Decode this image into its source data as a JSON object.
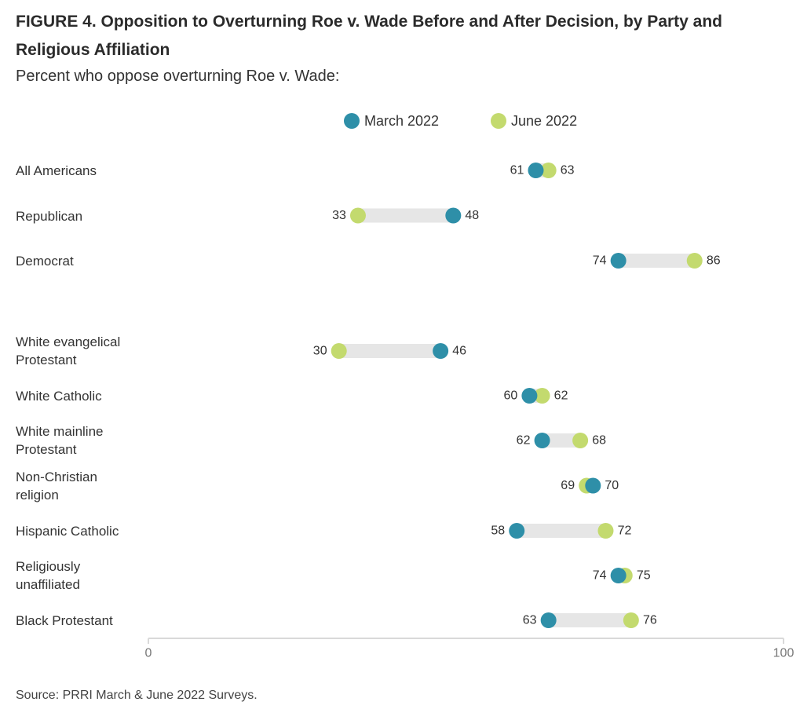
{
  "chart_data": {
    "type": "dumbbell",
    "title": "FIGURE 4.  Opposition to Overturning Roe v. Wade Before and After Decision, by Party and Religious Affiliation",
    "subtitle": "Percent who oppose overturning Roe v. Wade:",
    "source": "Source: PRRI March & June 2022 Surveys.",
    "xlim": [
      0,
      100
    ],
    "x_ticks": [
      "0",
      "100"
    ],
    "legend_position": "top-center",
    "series": [
      {
        "name": "March 2022",
        "color": "#2e8fa8"
      },
      {
        "name": "June 2022",
        "color": "#c3da6e"
      }
    ],
    "categories": [
      {
        "label": "All Americans",
        "march": 61,
        "june": 63
      },
      {
        "label": "Republican",
        "march": 48,
        "june": 33
      },
      {
        "label": "Democrat",
        "march": 74,
        "june": 86
      },
      {
        "label": "White evangelical Protestant",
        "march": 46,
        "june": 30
      },
      {
        "label": "White Catholic",
        "march": 60,
        "june": 62
      },
      {
        "label": "White mainline Protestant",
        "march": 62,
        "june": 68
      },
      {
        "label": "Non-Christian religion",
        "march": 70,
        "june": 69
      },
      {
        "label": "Hispanic Catholic",
        "march": 58,
        "june": 72
      },
      {
        "label": "Religiously unaffiliated",
        "march": 74,
        "june": 75
      },
      {
        "label": "Black Protestant",
        "march": 63,
        "june": 76
      }
    ]
  }
}
